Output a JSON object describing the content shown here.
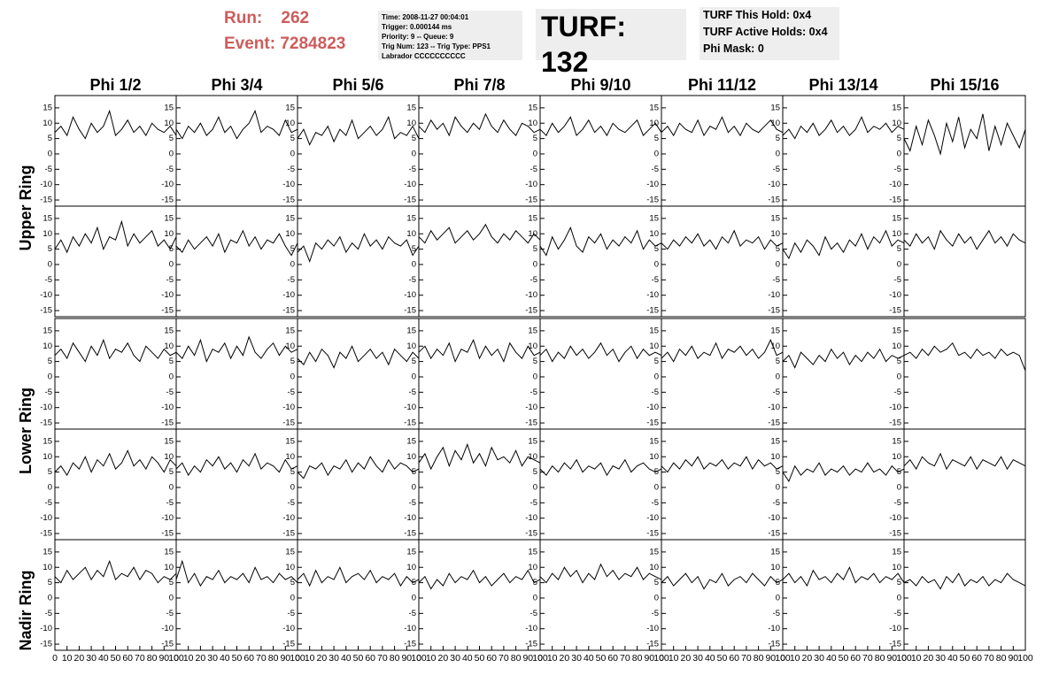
{
  "header": {
    "run_label": "Run:",
    "run": "262",
    "event_label": "Event:",
    "event": "7284823",
    "info": [
      "Time: 2008-11-27 00:04:01",
      "Trigger: 0.000144 ms",
      "Priority: 9 -- Queue: 9",
      "Trig Num: 123 -- Trig Type: PPS1",
      "Labrador CCCCCCCCCC"
    ],
    "turf": "TURF: 132",
    "turf_info": [
      "TURF This Hold: 0x4",
      "TURF Active Holds: 0x4",
      "Phi Mask: 0"
    ]
  },
  "chart_data": {
    "type": "line",
    "columns": [
      "Phi 1/2",
      "Phi 3/4",
      "Phi 5/6",
      "Phi 7/8",
      "Phi 9/10",
      "Phi 11/12",
      "Phi 13/14",
      "Phi 15/16"
    ],
    "row_labels": [
      "Upper Ring",
      "Lower Ring",
      "Nadir Ring"
    ],
    "color": "#000000",
    "xlim": [
      0,
      100
    ],
    "ylim": [
      -17,
      19
    ],
    "xticks": [
      0,
      10,
      20,
      30,
      40,
      50,
      60,
      70,
      80,
      90,
      100
    ],
    "yticks": [
      -15,
      -10,
      -5,
      0,
      5,
      10,
      15
    ],
    "x": [
      0,
      5,
      10,
      15,
      20,
      25,
      30,
      35,
      40,
      45,
      50,
      55,
      60,
      65,
      70,
      75,
      80,
      85,
      90,
      95,
      100
    ],
    "panels": [
      [
        [
          7,
          9,
          6,
          12,
          8,
          5,
          10,
          7,
          9,
          14,
          6,
          8,
          11,
          7,
          9,
          6,
          10,
          8,
          7,
          9,
          6
        ],
        [
          8,
          5,
          9,
          7,
          10,
          6,
          8,
          12,
          7,
          9,
          5,
          8,
          10,
          14,
          7,
          9,
          8,
          6,
          11,
          7,
          8
        ],
        [
          5,
          8,
          3,
          7,
          6,
          9,
          4,
          8,
          6,
          11,
          5,
          7,
          9,
          6,
          8,
          12,
          5,
          7,
          6,
          9,
          5
        ],
        [
          9,
          7,
          11,
          8,
          10,
          6,
          12,
          9,
          7,
          10,
          8,
          13,
          9,
          7,
          11,
          8,
          6,
          10,
          9,
          7,
          8
        ],
        [
          8,
          6,
          10,
          7,
          9,
          12,
          6,
          8,
          11,
          7,
          9,
          6,
          10,
          8,
          7,
          9,
          11,
          6,
          8,
          10,
          7
        ],
        [
          7,
          9,
          6,
          10,
          8,
          7,
          11,
          6,
          9,
          8,
          12,
          7,
          9,
          6,
          10,
          8,
          7,
          9,
          11,
          8,
          7
        ],
        [
          6,
          8,
          5,
          9,
          7,
          10,
          6,
          8,
          11,
          7,
          9,
          6,
          8,
          12,
          7,
          9,
          8,
          10,
          7,
          9,
          8
        ],
        [
          5,
          1,
          9,
          3,
          11,
          6,
          0,
          10,
          4,
          12,
          2,
          8,
          5,
          13,
          1,
          9,
          3,
          10,
          6,
          2,
          8
        ]
      ],
      [
        [
          5,
          8,
          4,
          9,
          6,
          10,
          7,
          12,
          5,
          9,
          8,
          14,
          6,
          10,
          7,
          9,
          11,
          6,
          8,
          5,
          9
        ],
        [
          6,
          4,
          8,
          5,
          7,
          9,
          6,
          10,
          4,
          8,
          7,
          11,
          6,
          9,
          5,
          8,
          7,
          10,
          6,
          3,
          7
        ],
        [
          4,
          6,
          1,
          7,
          5,
          8,
          6,
          9,
          4,
          7,
          5,
          10,
          6,
          8,
          5,
          9,
          7,
          6,
          8,
          3,
          6
        ],
        [
          9,
          7,
          11,
          8,
          10,
          12,
          7,
          9,
          11,
          8,
          10,
          13,
          9,
          7,
          10,
          8,
          11,
          9,
          7,
          10,
          8
        ],
        [
          6,
          3,
          9,
          5,
          8,
          12,
          6,
          4,
          9,
          7,
          10,
          5,
          8,
          6,
          9,
          7,
          11,
          5,
          8,
          6,
          7
        ],
        [
          7,
          5,
          8,
          6,
          9,
          7,
          10,
          6,
          8,
          5,
          9,
          7,
          11,
          6,
          8,
          7,
          9,
          5,
          8,
          6,
          7
        ],
        [
          5,
          2,
          7,
          4,
          8,
          6,
          3,
          9,
          5,
          7,
          4,
          8,
          6,
          10,
          5,
          9,
          7,
          11,
          6,
          8,
          7
        ],
        [
          8,
          6,
          10,
          7,
          9,
          5,
          11,
          8,
          6,
          10,
          7,
          9,
          5,
          8,
          11,
          7,
          9,
          6,
          10,
          8,
          7
        ]
      ],
      [
        [
          7,
          9,
          6,
          11,
          8,
          5,
          10,
          7,
          12,
          6,
          9,
          8,
          11,
          7,
          5,
          10,
          8,
          6,
          9,
          7,
          8
        ],
        [
          8,
          6,
          10,
          7,
          12,
          5,
          9,
          8,
          11,
          6,
          10,
          7,
          13,
          8,
          6,
          9,
          11,
          7,
          10,
          8,
          9
        ],
        [
          6,
          4,
          8,
          5,
          9,
          7,
          3,
          8,
          6,
          10,
          5,
          7,
          9,
          6,
          8,
          4,
          9,
          7,
          5,
          8,
          6
        ],
        [
          8,
          10,
          6,
          9,
          7,
          11,
          5,
          9,
          8,
          12,
          6,
          10,
          7,
          9,
          5,
          11,
          8,
          6,
          10,
          7,
          8
        ],
        [
          7,
          9,
          5,
          8,
          6,
          10,
          7,
          9,
          6,
          8,
          11,
          7,
          9,
          5,
          8,
          10,
          6,
          9,
          7,
          8,
          7
        ],
        [
          6,
          8,
          5,
          9,
          7,
          10,
          6,
          8,
          7,
          11,
          6,
          9,
          8,
          10,
          7,
          9,
          6,
          8,
          12,
          7,
          8
        ],
        [
          5,
          7,
          3,
          8,
          6,
          4,
          7,
          5,
          9,
          6,
          8,
          4,
          7,
          5,
          8,
          6,
          9,
          5,
          7,
          6,
          7
        ],
        [
          7,
          8,
          6,
          9,
          7,
          10,
          8,
          9,
          11,
          7,
          8,
          6,
          9,
          7,
          8,
          6,
          9,
          7,
          8,
          7,
          2
        ]
      ],
      [
        [
          5,
          7,
          4,
          8,
          6,
          10,
          5,
          9,
          7,
          11,
          6,
          8,
          12,
          7,
          9,
          6,
          10,
          8,
          5,
          9,
          7
        ],
        [
          6,
          8,
          4,
          7,
          5,
          9,
          7,
          10,
          6,
          8,
          5,
          9,
          7,
          11,
          6,
          8,
          7,
          5,
          9,
          6,
          7
        ],
        [
          5,
          3,
          7,
          6,
          8,
          4,
          7,
          6,
          9,
          5,
          8,
          6,
          10,
          7,
          5,
          9,
          6,
          8,
          7,
          5,
          6
        ],
        [
          8,
          11,
          6,
          10,
          13,
          7,
          12,
          9,
          14,
          8,
          11,
          7,
          13,
          9,
          10,
          8,
          12,
          7,
          10,
          9,
          8
        ],
        [
          6,
          4,
          7,
          5,
          8,
          6,
          9,
          5,
          7,
          6,
          8,
          4,
          7,
          6,
          9,
          5,
          7,
          8,
          6,
          5,
          6
        ],
        [
          7,
          5,
          8,
          6,
          9,
          7,
          10,
          6,
          8,
          7,
          9,
          6,
          8,
          7,
          10,
          6,
          9,
          7,
          8,
          6,
          7
        ],
        [
          5,
          2,
          7,
          4,
          6,
          5,
          8,
          4,
          6,
          5,
          7,
          4,
          6,
          5,
          8,
          5,
          6,
          4,
          7,
          5,
          6
        ],
        [
          7,
          9,
          6,
          10,
          8,
          7,
          11,
          6,
          9,
          8,
          7,
          10,
          6,
          9,
          8,
          7,
          10,
          6,
          9,
          8,
          7
        ]
      ],
      [
        [
          7,
          5,
          9,
          6,
          8,
          10,
          6,
          9,
          7,
          12,
          6,
          8,
          7,
          10,
          6,
          9,
          8,
          5,
          7,
          6,
          8
        ],
        [
          6,
          12,
          5,
          8,
          4,
          7,
          6,
          9,
          5,
          7,
          6,
          8,
          5,
          10,
          6,
          7,
          5,
          8,
          6,
          7,
          5
        ],
        [
          6,
          8,
          4,
          9,
          5,
          7,
          6,
          10,
          5,
          7,
          8,
          6,
          9,
          5,
          7,
          6,
          8,
          4,
          7,
          5,
          6
        ],
        [
          5,
          7,
          3,
          6,
          4,
          8,
          5,
          7,
          6,
          9,
          5,
          7,
          4,
          6,
          8,
          5,
          7,
          6,
          9,
          5,
          6
        ],
        [
          7,
          5,
          8,
          6,
          10,
          7,
          9,
          5,
          8,
          6,
          11,
          7,
          9,
          6,
          8,
          7,
          10,
          6,
          8,
          7,
          6
        ],
        [
          5,
          7,
          4,
          6,
          8,
          5,
          7,
          3,
          6,
          5,
          8,
          4,
          6,
          7,
          5,
          8,
          6,
          4,
          7,
          5,
          6
        ],
        [
          6,
          8,
          5,
          7,
          4,
          9,
          6,
          7,
          5,
          8,
          6,
          10,
          5,
          7,
          6,
          8,
          5,
          7,
          6,
          8,
          5
        ],
        [
          5,
          6,
          4,
          7,
          5,
          6,
          3,
          7,
          5,
          8,
          4,
          6,
          5,
          7,
          4,
          6,
          5,
          8,
          6,
          5,
          4
        ]
      ]
    ]
  }
}
